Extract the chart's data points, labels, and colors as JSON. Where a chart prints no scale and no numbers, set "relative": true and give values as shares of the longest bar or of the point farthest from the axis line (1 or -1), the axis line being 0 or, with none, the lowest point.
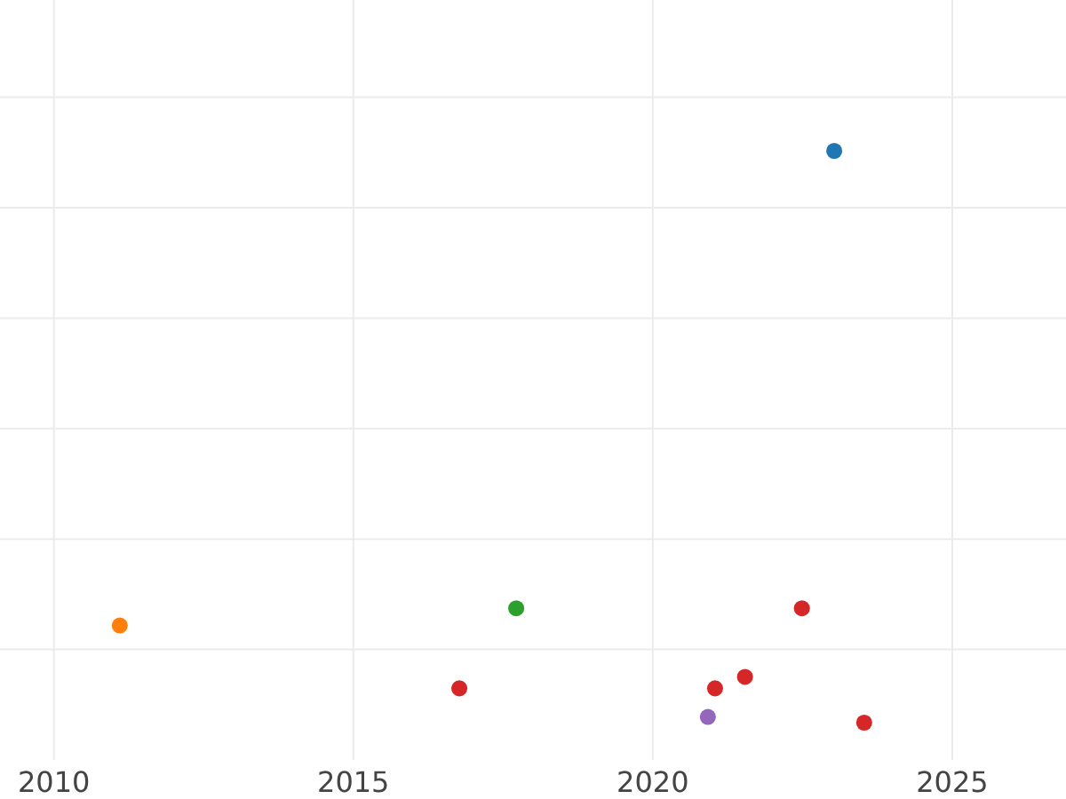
{
  "chart_data": {
    "type": "scatter",
    "relative": true,
    "xlim": [
      2009.1,
      2026.9
    ],
    "xticks": [
      2010,
      2015,
      2020,
      2025
    ],
    "grid": true,
    "tick_labels": "x",
    "marker": "circle",
    "series": [
      {
        "color": "#1f77b4",
        "x": [
          2023.03
        ],
        "values": [
          1
        ]
      },
      {
        "color": "#ff7f0e",
        "x": [
          2011.1
        ],
        "values": [
          0.17
        ]
      },
      {
        "color": "#2ca02c",
        "x": [
          2017.72
        ],
        "values": [
          0.2
        ]
      },
      {
        "color": "#d62728",
        "x": [
          2022.49,
          2016.77,
          2021.54,
          2021.04,
          2023.53
        ],
        "values": [
          0.2,
          0.06,
          0.08,
          0.06,
          0
        ]
      },
      {
        "color": "#9467bd",
        "x": [
          2020.92
        ],
        "values": [
          0.01
        ]
      }
    ]
  }
}
